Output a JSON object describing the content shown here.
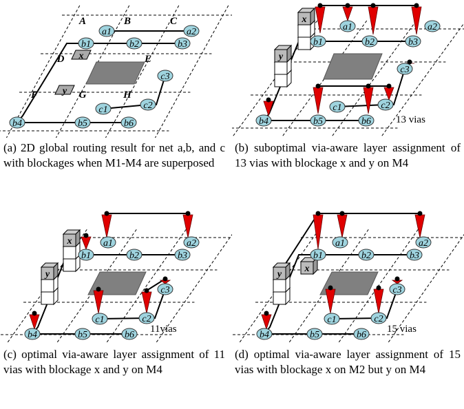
{
  "panels": [
    {
      "regions": [
        "A",
        "B",
        "C",
        "D",
        "E",
        "F",
        "G",
        "H"
      ],
      "pins": [
        "a1",
        "a2",
        "b1",
        "b2",
        "b3",
        "b4",
        "b5",
        "b6",
        "c1",
        "c2",
        "c3"
      ],
      "blockages": [
        "x",
        "y"
      ],
      "caption": "(a) 2D global routing result for net a,b, and c with blockages when M1-M4 are superposed"
    },
    {
      "pins": [
        "a1",
        "a2",
        "b1",
        "b2",
        "b3",
        "b4",
        "b5",
        "b6",
        "c1",
        "c2",
        "c3"
      ],
      "blockages": [
        "x",
        "y"
      ],
      "via_count": "13 vias",
      "caption": "(b) suboptimal via-aware layer assignment of 13 vias with blockage x and y on M4"
    },
    {
      "pins": [
        "a1",
        "a2",
        "b1",
        "b2",
        "b3",
        "b4",
        "b5",
        "b6",
        "c1",
        "c2",
        "c3"
      ],
      "blockages": [
        "x",
        "y"
      ],
      "via_count": "11vias",
      "caption": "(c) optimal via-aware layer assignment of 11 vias with blockage x and y on M4"
    },
    {
      "pins": [
        "a1",
        "a2",
        "b1",
        "b2",
        "b3",
        "b4",
        "b5",
        "b6",
        "c1",
        "c2",
        "c3"
      ],
      "blockages": [
        "x",
        "y"
      ],
      "via_count": "15 vias",
      "caption": "(d) optimal via-aware layer assignment of 15 vias with blockage x on M2 but y on M4"
    }
  ]
}
